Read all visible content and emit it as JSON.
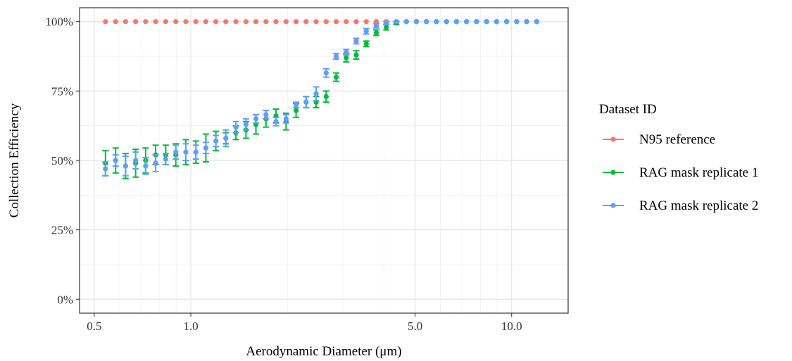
{
  "chart_data": {
    "type": "scatter",
    "xlabel": "Aerodynamic Diameter (μm)",
    "ylabel": "Collection Efficiency",
    "x_scale": "log",
    "xlim": [
      0.45,
      15
    ],
    "ylim": [
      0,
      1
    ],
    "x_ticks": [
      {
        "value": 0.5,
        "label": "0.5"
      },
      {
        "value": 1.0,
        "label": "1.0"
      },
      {
        "value": 5.0,
        "label": "5.0"
      },
      {
        "value": 10.0,
        "label": "10.0"
      }
    ],
    "y_ticks": [
      {
        "value": 0.0,
        "label": "0%"
      },
      {
        "value": 0.25,
        "label": "25%"
      },
      {
        "value": 0.5,
        "label": "50%"
      },
      {
        "value": 0.75,
        "label": "75%"
      },
      {
        "value": 1.0,
        "label": "100%"
      }
    ],
    "grid": true,
    "legend": {
      "title": "Dataset ID",
      "position": "right"
    },
    "x": [
      0.542,
      0.583,
      0.626,
      0.673,
      0.723,
      0.777,
      0.835,
      0.898,
      0.965,
      1.037,
      1.114,
      1.197,
      1.286,
      1.382,
      1.486,
      1.596,
      1.715,
      1.843,
      1.981,
      2.129,
      2.288,
      2.458,
      2.642,
      2.839,
      3.051,
      3.278,
      3.523,
      3.786,
      4.068,
      4.371,
      4.698,
      5.048,
      5.425,
      5.829,
      6.264,
      6.732,
      7.234,
      7.774,
      8.354,
      8.977,
      9.647,
      10.37,
      11.14,
      11.97
    ],
    "series": [
      {
        "name": "N95 reference",
        "color": "#F8766D",
        "y": [
          1.0,
          1.0,
          1.0,
          1.0,
          1.0,
          1.0,
          1.0,
          1.0,
          1.0,
          1.0,
          1.0,
          1.0,
          1.0,
          1.0,
          1.0,
          1.0,
          1.0,
          1.0,
          1.0,
          1.0,
          1.0,
          1.0,
          1.0,
          1.0,
          1.0,
          1.0,
          1.0,
          1.0,
          1.0,
          1.0,
          1.0,
          1.0,
          1.0,
          1.0,
          1.0,
          1.0,
          1.0,
          1.0,
          1.0,
          1.0,
          1.0,
          1.0,
          1.0,
          1.0
        ],
        "error": [
          0,
          0,
          0,
          0,
          0,
          0,
          0,
          0,
          0,
          0,
          0,
          0,
          0,
          0,
          0,
          0,
          0,
          0,
          0,
          0,
          0,
          0,
          0,
          0,
          0,
          0,
          0,
          0,
          0,
          0,
          0,
          0,
          0,
          0,
          0,
          0,
          0,
          0,
          0,
          0,
          0,
          0,
          0,
          0
        ]
      },
      {
        "name": "RAG mask replicate 1",
        "color": "#00BA38",
        "y": [
          0.49,
          0.5,
          0.48,
          0.49,
          0.5,
          0.52,
          0.52,
          0.52,
          0.53,
          0.53,
          0.545,
          0.57,
          0.58,
          0.6,
          0.61,
          0.63,
          0.65,
          0.66,
          0.64,
          0.68,
          0.71,
          0.71,
          0.73,
          0.8,
          0.87,
          0.88,
          0.92,
          0.96,
          0.98,
          0.995,
          1.0,
          1.0,
          1.0,
          1.0,
          1.0,
          1.0,
          1.0,
          1.0,
          1.0,
          1.0,
          1.0,
          1.0,
          1.0,
          1.0
        ],
        "error": [
          0.045,
          0.045,
          0.045,
          0.05,
          0.045,
          0.035,
          0.035,
          0.04,
          0.045,
          0.04,
          0.05,
          0.035,
          0.02,
          0.025,
          0.03,
          0.035,
          0.03,
          0.025,
          0.03,
          0.025,
          0.02,
          0.02,
          0.02,
          0.015,
          0.015,
          0.015,
          0.01,
          0.01,
          0.01,
          0.005,
          0,
          0,
          0,
          0,
          0,
          0,
          0,
          0,
          0,
          0,
          0,
          0,
          0,
          0
        ]
      },
      {
        "name": "RAG mask replicate 2",
        "color": "#619CFF",
        "y": [
          0.47,
          0.5,
          0.48,
          0.5,
          0.48,
          0.49,
          0.505,
          0.53,
          0.53,
          0.53,
          0.545,
          0.57,
          0.58,
          0.62,
          0.63,
          0.65,
          0.665,
          0.64,
          0.65,
          0.7,
          0.71,
          0.74,
          0.815,
          0.875,
          0.89,
          0.93,
          0.965,
          0.985,
          0.995,
          1.0,
          1.0,
          1.0,
          1.0,
          1.0,
          1.0,
          1.0,
          1.0,
          1.0,
          1.0,
          1.0,
          1.0,
          1.0,
          1.0,
          1.0
        ],
        "error": [
          0.025,
          0.02,
          0.035,
          0.03,
          0.03,
          0.03,
          0.02,
          0.025,
          0.03,
          0.025,
          0.02,
          0.02,
          0.03,
          0.02,
          0.02,
          0.015,
          0.015,
          0.015,
          0.015,
          0.01,
          0.02,
          0.025,
          0.015,
          0.01,
          0.01,
          0.01,
          0.01,
          0.008,
          0.005,
          0,
          0,
          0,
          0,
          0,
          0,
          0,
          0,
          0,
          0,
          0,
          0,
          0,
          0,
          0
        ]
      }
    ]
  }
}
